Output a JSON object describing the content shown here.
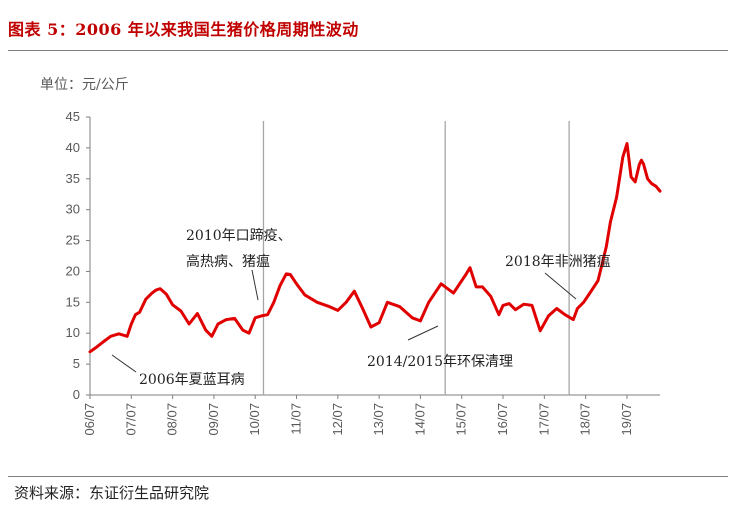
{
  "title": "图表 5：2006 年以来我国生猪价格周期性波动",
  "source": "资料来源：东证衍生品研究院",
  "colors": {
    "title": "#c00000",
    "series": "#e00000",
    "event_line": "#a6a6a6"
  },
  "chart_data": {
    "type": "line",
    "ylabel": "单位：元/公斤",
    "ylim": [
      0,
      45
    ],
    "yticks": [
      "0",
      "5",
      "10",
      "15",
      "20",
      "25",
      "30",
      "35",
      "40",
      "45"
    ],
    "xticks": [
      "06/07",
      "07/07",
      "08/07",
      "09/07",
      "10/07",
      "11/07",
      "12/07",
      "13/07",
      "14/07",
      "15/07",
      "16/07",
      "17/07",
      "18/07",
      "19/07"
    ],
    "xlim": [
      0,
      13.8
    ],
    "grid": false,
    "series": [
      {
        "x": [
          0,
          0.15,
          0.3,
          0.5,
          0.7,
          0.9,
          1.0,
          1.1,
          1.2,
          1.35,
          1.5,
          1.6,
          1.7,
          1.85,
          2.0,
          2.2,
          2.4,
          2.6,
          2.8,
          2.95,
          3.1,
          3.3,
          3.5,
          3.7,
          3.85,
          4.0,
          4.15,
          4.3,
          4.45,
          4.6,
          4.75,
          4.85,
          5.0,
          5.2,
          5.5,
          5.8,
          6.0,
          6.2,
          6.4,
          6.6,
          6.8,
          7.0,
          7.2,
          7.5,
          7.8,
          8.0,
          8.2,
          8.5,
          8.8,
          9.0,
          9.1,
          9.2,
          9.35,
          9.5,
          9.7,
          9.9,
          10.0,
          10.15,
          10.3,
          10.5,
          10.7,
          10.9,
          11.1,
          11.3,
          11.5,
          11.7,
          11.8,
          11.95,
          12.1,
          12.3,
          12.5,
          12.6,
          12.75,
          12.9,
          13.0,
          13.1,
          13.2,
          13.3,
          13.35,
          13.4,
          13.5,
          13.6,
          13.7,
          13.8
        ],
        "values": [
          7,
          7.7,
          8.5,
          9.5,
          9.9,
          9.5,
          11.5,
          13,
          13.4,
          15.5,
          16.5,
          17,
          17.2,
          16.3,
          14.6,
          13.6,
          11.5,
          13.2,
          10.5,
          9.5,
          11.5,
          12.2,
          12.4,
          10.5,
          10,
          12.5,
          12.8,
          13,
          15,
          17.7,
          19.6,
          19.5,
          18,
          16.2,
          15,
          14.3,
          13.7,
          15,
          16.8,
          14,
          11,
          11.7,
          15,
          14.3,
          12.5,
          12,
          15,
          18,
          16.5,
          18.5,
          19.5,
          20.6,
          17.5,
          17.5,
          16,
          13,
          14.5,
          14.8,
          13.8,
          14.7,
          14.5,
          10.4,
          12.8,
          14,
          13,
          12.2,
          14,
          15,
          16.5,
          18.5,
          24,
          28,
          32,
          38.5,
          40.7,
          35.3,
          34.5,
          37.3,
          38,
          37.4,
          35,
          34.2,
          33.8,
          33
        ]
      }
    ],
    "events": [
      {
        "x": 4.2,
        "label_lines": [
          "2010年口蹄疫、",
          "高热病、猪瘟"
        ]
      },
      {
        "x": 8.6,
        "label_lines": [
          "2014/2015年环保清理"
        ]
      },
      {
        "x": 11.6,
        "label_lines": [
          "2018年非洲猪瘟"
        ]
      }
    ],
    "annotations": [
      {
        "label": "2006年夏蓝耳病"
      }
    ]
  }
}
